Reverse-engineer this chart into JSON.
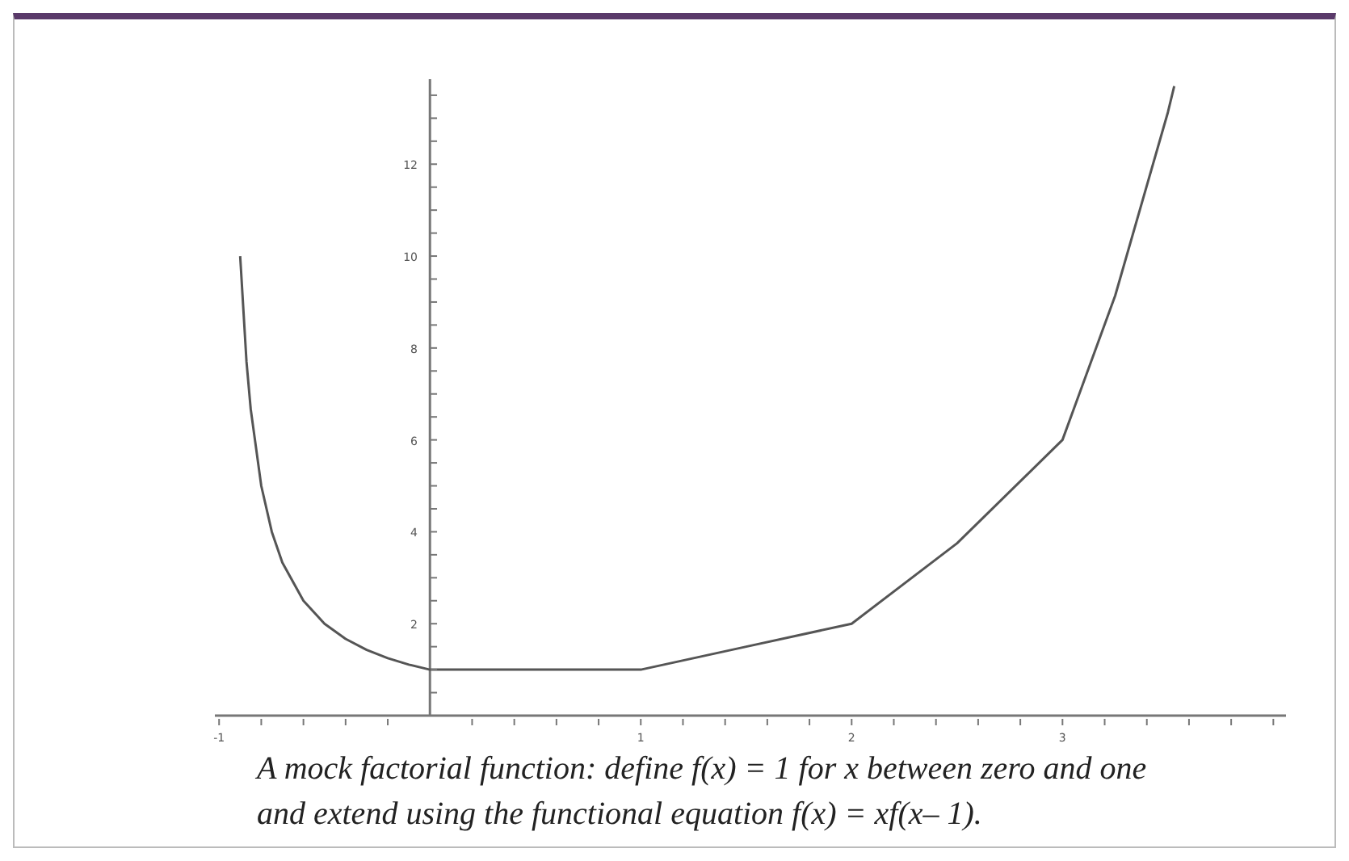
{
  "chart_data": {
    "type": "line",
    "annotations": [
      "A mock factorial function: define f(x) = 1 for x between zero and one and extend using the functional equation f(x) = xf(x– 1)."
    ],
    "x": [
      -0.9,
      -0.87,
      -0.85,
      -0.8,
      -0.75,
      -0.7,
      -0.6,
      -0.5,
      -0.4,
      -0.3,
      -0.2,
      -0.1,
      0,
      1,
      1.5,
      2,
      2.5,
      3,
      3.25,
      3.5,
      3.53
    ],
    "series": [
      {
        "color": "#555555",
        "values": [
          10,
          7.7,
          6.67,
          5,
          4,
          3.33,
          2.5,
          2,
          1.67,
          1.43,
          1.25,
          1.11,
          1,
          1,
          1.5,
          2,
          3.75,
          6,
          9.14,
          13.13,
          13.7
        ]
      }
    ],
    "xlim": [
      -1.02,
      4.06
    ],
    "xticks": [
      {
        "value": -1,
        "label": "-1"
      },
      {
        "value": -0.8,
        "label": null
      },
      {
        "value": -0.6,
        "label": null
      },
      {
        "value": -0.4,
        "label": null
      },
      {
        "value": -0.2,
        "label": null
      },
      {
        "value": 0.2,
        "label": null
      },
      {
        "value": 0.4,
        "label": null
      },
      {
        "value": 0.6,
        "label": null
      },
      {
        "value": 0.8,
        "label": null
      },
      {
        "value": 1,
        "label": "1"
      },
      {
        "value": 1.2,
        "label": null
      },
      {
        "value": 1.4,
        "label": null
      },
      {
        "value": 1.6,
        "label": null
      },
      {
        "value": 1.8,
        "label": null
      },
      {
        "value": 2,
        "label": "2"
      },
      {
        "value": 2.2,
        "label": null
      },
      {
        "value": 2.4,
        "label": null
      },
      {
        "value": 2.6,
        "label": null
      },
      {
        "value": 2.8,
        "label": null
      },
      {
        "value": 3,
        "label": "3"
      },
      {
        "value": 3.2,
        "label": null
      },
      {
        "value": 3.4,
        "label": null
      },
      {
        "value": 3.6,
        "label": null
      },
      {
        "value": 3.8,
        "label": null
      },
      {
        "value": 4,
        "label": null
      }
    ],
    "ylim": [
      0,
      13.85
    ],
    "yticks": [
      {
        "value": 0.5,
        "label": null
      },
      {
        "value": 1,
        "label": null
      },
      {
        "value": 1.5,
        "label": null
      },
      2,
      {
        "value": 2.5,
        "label": null
      },
      {
        "value": 3,
        "label": null
      },
      {
        "value": 3.5,
        "label": null
      },
      4,
      {
        "value": 4.5,
        "label": null
      },
      {
        "value": 5,
        "label": null
      },
      {
        "value": 5.5,
        "label": null
      },
      6,
      {
        "value": 6.5,
        "label": null
      },
      {
        "value": 7,
        "label": null
      },
      {
        "value": 7.5,
        "label": null
      },
      8,
      {
        "value": 8.5,
        "label": null
      },
      {
        "value": 9,
        "label": null
      },
      {
        "value": 9.5,
        "label": null
      },
      10,
      {
        "value": 10.5,
        "label": null
      },
      {
        "value": 11,
        "label": null
      },
      {
        "value": 11.5,
        "label": null
      },
      12,
      {
        "value": 12.5,
        "label": null
      },
      {
        "value": 13,
        "label": null
      },
      {
        "value": 13.5,
        "label": null
      }
    ],
    "grid": false,
    "marker": "none",
    "line_style": "solid"
  }
}
